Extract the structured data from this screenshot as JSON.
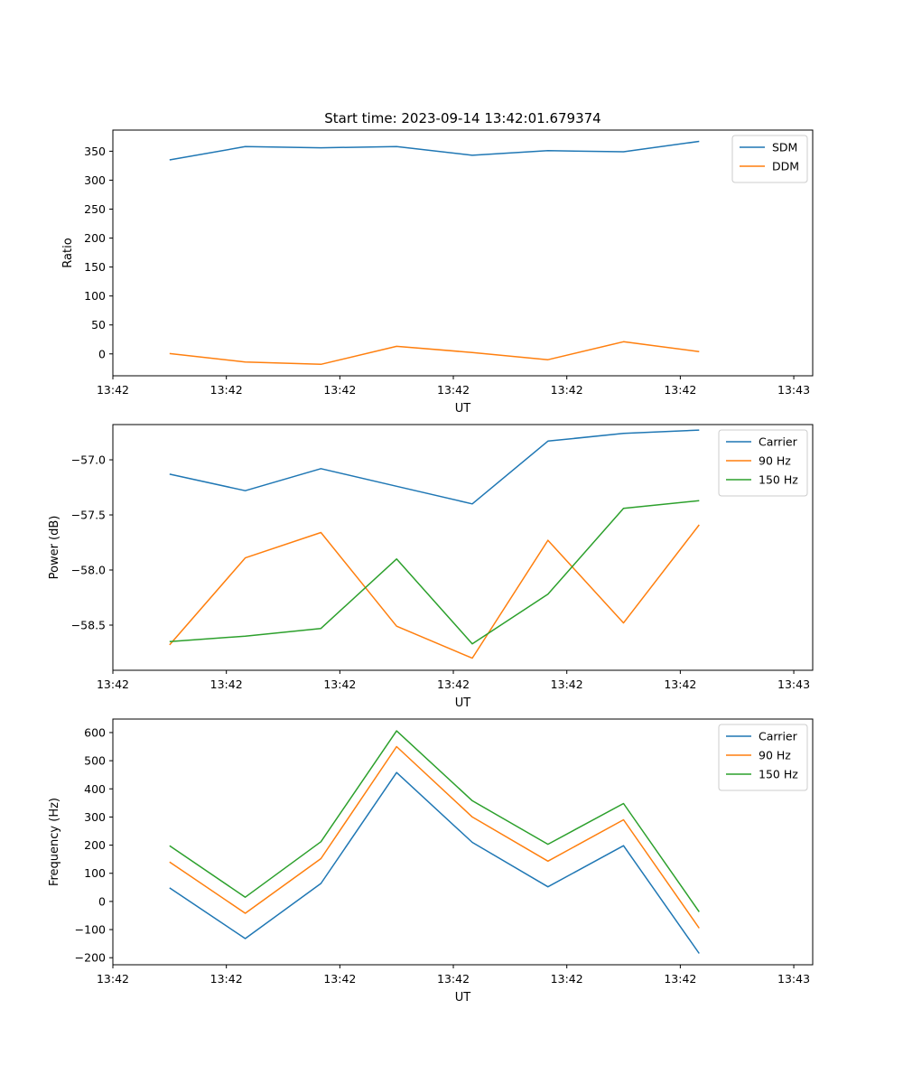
{
  "colors": {
    "blue": "#1f77b4",
    "orange": "#ff7f0e",
    "green": "#2ca02c"
  },
  "chart_data": [
    {
      "type": "line",
      "title": "Start time: 2023-09-14 13:42:01.679374",
      "xlabel": "UT",
      "ylabel": "Ratio",
      "x": [
        1,
        2,
        3,
        4,
        5,
        6,
        7,
        8
      ],
      "xlim": [
        0.25,
        9.5
      ],
      "xticks": [
        0.25,
        1.75,
        3.25,
        4.75,
        6.25,
        7.75,
        9.25
      ],
      "xtick_labels": [
        "13:42",
        "13:42",
        "13:42",
        "13:42",
        "13:42",
        "13:42",
        "13:43"
      ],
      "ylim": [
        -37.8,
        386.5
      ],
      "yticks": [
        0,
        50,
        100,
        150,
        200,
        250,
        300,
        350
      ],
      "ytick_labels": [
        "0",
        "50",
        "100",
        "150",
        "200",
        "250",
        "300",
        "350"
      ],
      "legend_position": "top-right",
      "series": [
        {
          "name": "SDM",
          "color": "#1f77b4",
          "values": [
            335,
            358,
            356,
            358,
            343,
            351,
            349,
            367
          ]
        },
        {
          "name": "DDM",
          "color": "#ff7f0e",
          "values": [
            0.5,
            -14,
            -18,
            13,
            2.5,
            -10,
            21,
            4
          ]
        }
      ]
    },
    {
      "type": "line",
      "title": "",
      "xlabel": "UT",
      "ylabel": "Power (dB)",
      "x": [
        1,
        2,
        3,
        4,
        5,
        6,
        7,
        8
      ],
      "xlim": [
        0.25,
        9.5
      ],
      "xticks": [
        0.25,
        1.75,
        3.25,
        4.75,
        6.25,
        7.75,
        9.25
      ],
      "xtick_labels": [
        "13:42",
        "13:42",
        "13:42",
        "13:42",
        "13:42",
        "13:42",
        "13:43"
      ],
      "ylim": [
        -58.91,
        -56.68
      ],
      "yticks": [
        -58.5,
        -58.0,
        -57.5,
        -57.0
      ],
      "ytick_labels": [
        "−58.5",
        "−58.0",
        "−57.5",
        "−57.0"
      ],
      "legend_position": "top-right",
      "series": [
        {
          "name": "Carrier",
          "color": "#1f77b4",
          "values": [
            -57.13,
            -57.28,
            -57.08,
            -57.24,
            -57.4,
            -56.83,
            -56.76,
            -56.73
          ]
        },
        {
          "name": "90 Hz",
          "color": "#ff7f0e",
          "values": [
            -58.68,
            -57.89,
            -57.66,
            -58.51,
            -58.8,
            -57.73,
            -58.48,
            -57.59
          ]
        },
        {
          "name": "150 Hz",
          "color": "#2ca02c",
          "values": [
            -58.65,
            -58.6,
            -58.53,
            -57.9,
            -58.67,
            -58.22,
            -57.44,
            -57.37
          ]
        }
      ]
    },
    {
      "type": "line",
      "title": "",
      "xlabel": "UT",
      "ylabel": "Frequency (Hz)",
      "x": [
        1,
        2,
        3,
        4,
        5,
        6,
        7,
        8
      ],
      "xlim": [
        0.25,
        9.5
      ],
      "xticks": [
        0.25,
        1.75,
        3.25,
        4.75,
        6.25,
        7.75,
        9.25
      ],
      "xtick_labels": [
        "13:42",
        "13:42",
        "13:42",
        "13:42",
        "13:42",
        "13:42",
        "13:43"
      ],
      "ylim": [
        -225,
        648
      ],
      "yticks": [
        -200,
        -100,
        0,
        100,
        200,
        300,
        400,
        500,
        600
      ],
      "ytick_labels": [
        "−200",
        "−100",
        "0",
        "100",
        "200",
        "300",
        "400",
        "500",
        "600"
      ],
      "legend_position": "top-right",
      "series": [
        {
          "name": "Carrier",
          "color": "#1f77b4",
          "values": [
            48,
            -132,
            64,
            458,
            210,
            52,
            198,
            -185
          ]
        },
        {
          "name": "90 Hz",
          "color": "#ff7f0e",
          "values": [
            140,
            -42,
            152,
            550,
            300,
            143,
            290,
            -95
          ]
        },
        {
          "name": "150 Hz",
          "color": "#2ca02c",
          "values": [
            198,
            15,
            212,
            606,
            358,
            203,
            348,
            -37
          ]
        }
      ]
    }
  ]
}
